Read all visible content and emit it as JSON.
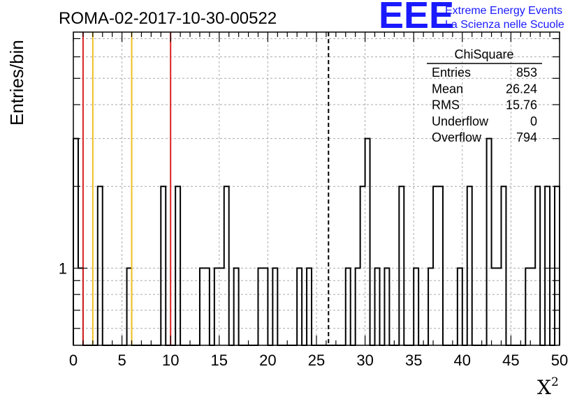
{
  "chart_data": {
    "type": "histogram",
    "title": "ROMA-02-2017-10-30-00522",
    "xlabel": "X",
    "xlabel_superscript": "2",
    "ylabel": "Entries/bin",
    "xlim": [
      0,
      50
    ],
    "ylim": [
      0.52,
      7.4
    ],
    "y_scale": "log",
    "grid": true,
    "bin_width": 0.5,
    "x_ticks": [
      "0",
      "5",
      "10",
      "15",
      "20",
      "25",
      "30",
      "35",
      "40",
      "45",
      "50"
    ],
    "y_tick_labels": [
      "1"
    ],
    "bins": [
      {
        "x": 0.0,
        "y": 3
      },
      {
        "x": 0.5,
        "y": 1
      },
      {
        "x": 2.5,
        "y": 2
      },
      {
        "x": 5.5,
        "y": 1
      },
      {
        "x": 9.0,
        "y": 2
      },
      {
        "x": 10.5,
        "y": 2
      },
      {
        "x": 13.0,
        "y": 1
      },
      {
        "x": 13.5,
        "y": 1
      },
      {
        "x": 14.5,
        "y": 1
      },
      {
        "x": 15.0,
        "y": 1
      },
      {
        "x": 15.5,
        "y": 2
      },
      {
        "x": 16.5,
        "y": 1
      },
      {
        "x": 19.0,
        "y": 1
      },
      {
        "x": 19.5,
        "y": 1
      },
      {
        "x": 20.5,
        "y": 1
      },
      {
        "x": 23.0,
        "y": 1
      },
      {
        "x": 24.0,
        "y": 1
      },
      {
        "x": 28.0,
        "y": 1
      },
      {
        "x": 29.0,
        "y": 1
      },
      {
        "x": 29.5,
        "y": 2
      },
      {
        "x": 30.0,
        "y": 3
      },
      {
        "x": 31.0,
        "y": 1
      },
      {
        "x": 32.0,
        "y": 1
      },
      {
        "x": 33.5,
        "y": 2
      },
      {
        "x": 35.0,
        "y": 1
      },
      {
        "x": 36.5,
        "y": 1
      },
      {
        "x": 37.0,
        "y": 2
      },
      {
        "x": 37.5,
        "y": 2
      },
      {
        "x": 39.5,
        "y": 1
      },
      {
        "x": 40.5,
        "y": 2
      },
      {
        "x": 42.5,
        "y": 3
      },
      {
        "x": 43.0,
        "y": 1
      },
      {
        "x": 43.5,
        "y": 1
      },
      {
        "x": 44.0,
        "y": 2
      },
      {
        "x": 46.5,
        "y": 1
      },
      {
        "x": 47.0,
        "y": 1
      },
      {
        "x": 47.5,
        "y": 2
      },
      {
        "x": 48.5,
        "y": 2
      },
      {
        "x": 49.5,
        "y": 2
      }
    ],
    "reference_lines": [
      {
        "x": 1,
        "color": "#dd2222",
        "style": "solid"
      },
      {
        "x": 2,
        "color": "#f0c020",
        "style": "solid"
      },
      {
        "x": 6,
        "color": "#f0c020",
        "style": "solid"
      },
      {
        "x": 10,
        "color": "#dd2222",
        "style": "solid"
      },
      {
        "x": 26.24,
        "color": "#000000",
        "style": "dashed"
      }
    ],
    "stats_box": {
      "title": "ChiSquare",
      "rows": [
        {
          "label": "Entries",
          "value": "853"
        },
        {
          "label": "Mean",
          "value": "26.24"
        },
        {
          "label": "RMS",
          "value": "15.76"
        },
        {
          "label": "Underflow",
          "value": "0"
        },
        {
          "label": "Overflow",
          "value": "794"
        }
      ]
    }
  },
  "logo": {
    "mark": "EEE",
    "line1": "Extreme Energy Events",
    "line2": "La Scienza nelle Scuole",
    "color": "#1a1aff"
  }
}
